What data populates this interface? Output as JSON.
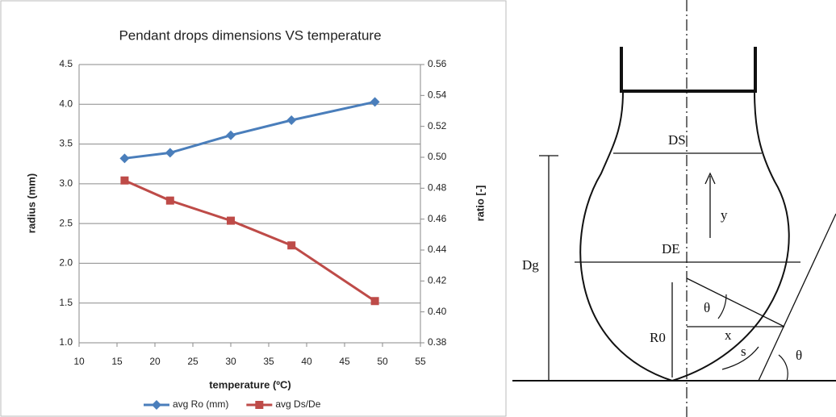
{
  "chart_data": {
    "type": "line",
    "title": "Pendant drops dimensions VS temperature",
    "xlabel": "temperature (ºC)",
    "ylabel": "radius (mm)",
    "y2label": "ratio [-]",
    "x": [
      16,
      22,
      30,
      38,
      49
    ],
    "series": [
      {
        "name": "avg Ro (mm)",
        "color": "#4a7ebb",
        "marker": "diamond",
        "values": [
          3.32,
          3.39,
          3.61,
          3.8,
          4.03
        ]
      },
      {
        "name": "avg Ds/De",
        "color": "#be4b48",
        "marker": "square",
        "axis": "y2",
        "values": [
          0.485,
          0.472,
          0.459,
          0.443,
          0.407
        ]
      }
    ],
    "xlim": [
      10,
      55
    ],
    "xticks": [
      10,
      15,
      20,
      25,
      30,
      35,
      40,
      45,
      50,
      55
    ],
    "ylim": [
      1.0,
      4.5
    ],
    "yticks": [
      {
        "value": 1.0,
        "label": "1.0"
      },
      1.5,
      {
        "value": 2.0,
        "label": "2.0"
      },
      2.5,
      {
        "value": 3.0,
        "label": "3.0"
      },
      3.5,
      {
        "value": 4.0,
        "label": "4.0"
      },
      4.5
    ],
    "y2lim": [
      0.38,
      0.56
    ],
    "y2ticks": [
      0.38,
      {
        "value": 0.4,
        "label": "0.40"
      },
      0.42,
      0.44,
      0.46,
      0.48,
      {
        "value": 0.5,
        "label": "0.50"
      },
      0.52,
      0.54,
      0.56
    ],
    "grid": true,
    "legend": "bottom"
  },
  "diagram": {
    "labels": {
      "ds": "DS",
      "de": "DE",
      "dg": "Dg",
      "y": "y",
      "theta1": "θ",
      "x": "x",
      "r0": "R0",
      "s": "s",
      "theta2": "θ"
    }
  }
}
